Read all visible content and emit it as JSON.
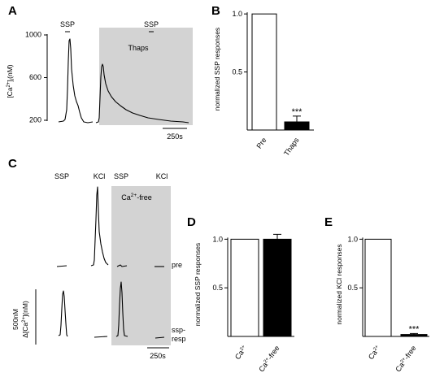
{
  "panels": {
    "A": {
      "letter": "A",
      "ylabel_main": "[Ca",
      "ylabel_sup": "2+",
      "ylabel_sub": "]",
      "ylabel_sub2": "i",
      "ylabel_unit": "(nM)",
      "yticks": [
        "1000",
        "600",
        "200"
      ],
      "ytick_values": [
        1000,
        600,
        200
      ],
      "stim1": "SSP",
      "stim2": "SSP",
      "treatment": "Thaps",
      "scalebar": "250s"
    },
    "B": {
      "letter": "B"
    },
    "C": {
      "letter": "C",
      "stim_labels": [
        "SSP",
        "KCl",
        "SSP",
        "KCl"
      ],
      "condition_main": "Ca",
      "condition_sup": "2+",
      "condition_rest": "-free",
      "row_labels": [
        "pre",
        "ssp-",
        "resp"
      ],
      "scale_y_value": "500nM",
      "scale_y_delta": "Δ[Ca",
      "scale_y_sup": "2+",
      "scale_y_rest": "](nM)",
      "scalebar": "250s"
    },
    "D": {
      "letter": "D"
    },
    "E": {
      "letter": "E"
    }
  },
  "chart_data": [
    {
      "id": "B",
      "type": "bar",
      "categories": [
        "Pre",
        "Thaps"
      ],
      "values": [
        1.0,
        0.07
      ],
      "errors": [
        0,
        0.05
      ],
      "significance": [
        "",
        "***"
      ],
      "ylabel": "normalized SSP responses",
      "ylim": [
        0,
        1.05
      ],
      "yticks": [
        "1.0",
        "0.5"
      ],
      "ytick_values": [
        1.0,
        0.5
      ],
      "fills": [
        "#ffffff",
        "#000000"
      ]
    },
    {
      "id": "D",
      "type": "bar",
      "categories": [
        {
          "main": "Ca",
          "sup": "2+",
          "rest": ""
        },
        {
          "main": "Ca",
          "sup": "2+",
          "rest": "-free"
        }
      ],
      "values": [
        1.0,
        1.0
      ],
      "errors": [
        0,
        0.05
      ],
      "significance": [
        "",
        ""
      ],
      "ylabel": "normalized SSP responses",
      "ylim": [
        0,
        1.12
      ],
      "yticks": [
        "1.0",
        "0.5"
      ],
      "ytick_values": [
        1.0,
        0.5
      ],
      "fills": [
        "#ffffff",
        "#000000"
      ]
    },
    {
      "id": "E",
      "type": "bar",
      "categories": [
        {
          "main": "Ca",
          "sup": "2+",
          "rest": ""
        },
        {
          "main": "Ca",
          "sup": "2+",
          "rest": "-free"
        }
      ],
      "values": [
        1.0,
        0.02
      ],
      "errors": [
        0,
        0.01
      ],
      "significance": [
        "",
        "***"
      ],
      "ylabel": "normalized KCl responses",
      "ylim": [
        0,
        1.12
      ],
      "yticks": [
        "1.0",
        "0.5"
      ],
      "ytick_values": [
        1.0,
        0.5
      ],
      "fills": [
        "#ffffff",
        "#000000"
      ]
    }
  ]
}
